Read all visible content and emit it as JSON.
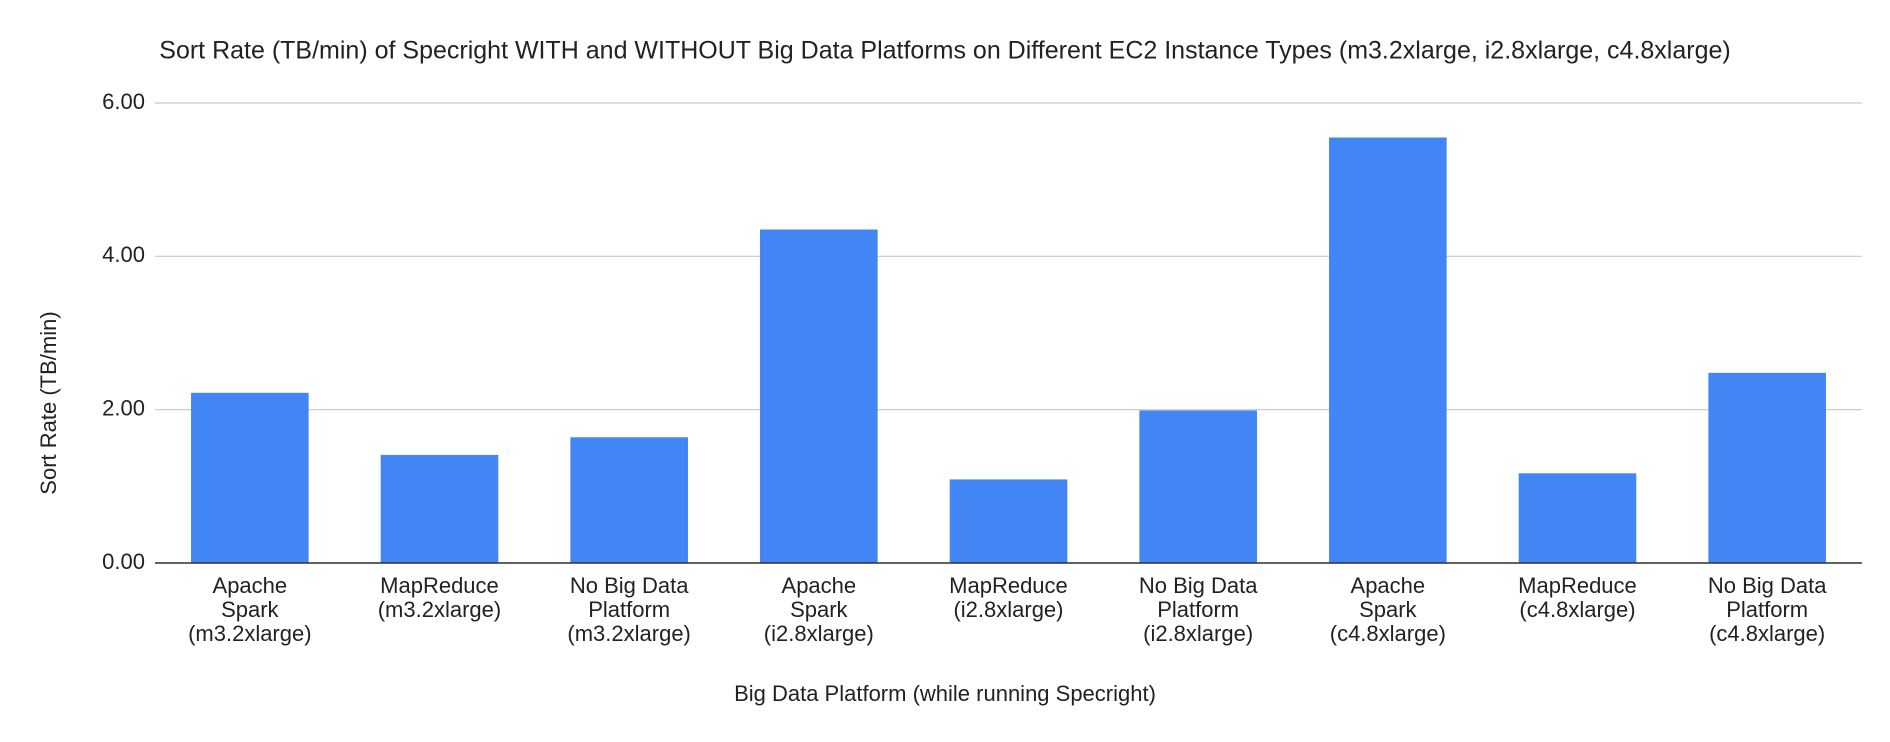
{
  "chart_data": {
    "type": "bar",
    "title": "Sort Rate (TB/min) of Specright WITH and WITHOUT Big Data Platforms on Different EC2 Instance Types (m3.2xlarge, i2.8xlarge, c4.8xlarge)",
    "x_label": "Big Data Platform (while running Specright)",
    "y_label": "Sort Rate (TB/min)",
    "categories": [
      "Apache\nSpark\n(m3.2xlarge)",
      "MapReduce\n(m3.2xlarge)",
      "No Big Data\nPlatform\n(m3.2xlarge)",
      "Apache\nSpark\n(i2.8xlarge)",
      "MapReduce\n(i2.8xlarge)",
      "No Big Data\nPlatform\n(i2.8xlarge)",
      "Apache\nSpark\n(c4.8xlarge)",
      "MapReduce\n(c4.8xlarge)",
      "No Big Data\nPlatform\n(c4.8xlarge)"
    ],
    "values": [
      2.22,
      1.41,
      1.64,
      4.35,
      1.09,
      1.99,
      5.55,
      1.17,
      2.48
    ],
    "color": "#4285f4",
    "ylim": [
      0,
      6
    ],
    "yticks": [
      {
        "value": 0,
        "label": "0.00"
      },
      {
        "value": 2,
        "label": "2.00"
      },
      {
        "value": 4,
        "label": "4.00"
      },
      {
        "value": 6,
        "label": "6.00"
      }
    ],
    "grid": true
  }
}
